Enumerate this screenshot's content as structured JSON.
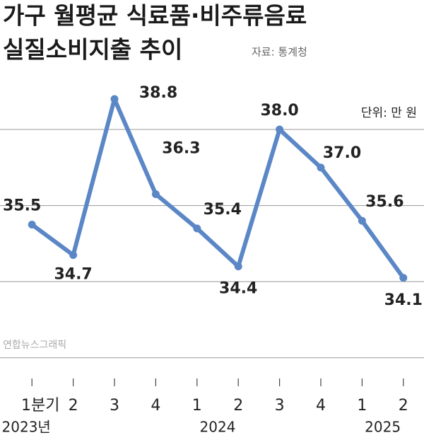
{
  "chart_data": {
    "type": "line",
    "title_lines": [
      "가구 월평균 식료품·비주류음료",
      "실질소비지출 추이"
    ],
    "source": "자료: 통계청",
    "unit": "단위: 만 원",
    "watermark": "연합뉴스그래픽",
    "categories": [
      "1분기",
      "2",
      "3",
      "4",
      "1",
      "2",
      "3",
      "4",
      "1",
      "2"
    ],
    "year_labels": [
      "2023년",
      "2024",
      "2025"
    ],
    "values": [
      35.5,
      34.7,
      38.8,
      36.3,
      35.4,
      34.4,
      38.0,
      37.0,
      35.6,
      34.1
    ],
    "value_labels": [
      "35.5",
      "34.7",
      "38.8",
      "36.3",
      "35.4",
      "34.4",
      "38.0",
      "37.0",
      "35.6",
      "34.1"
    ],
    "color": "#5b87c7",
    "ylim": [
      31.4,
      39.6
    ],
    "yticks": [
      32,
      34,
      36,
      38
    ],
    "grid": true
  }
}
